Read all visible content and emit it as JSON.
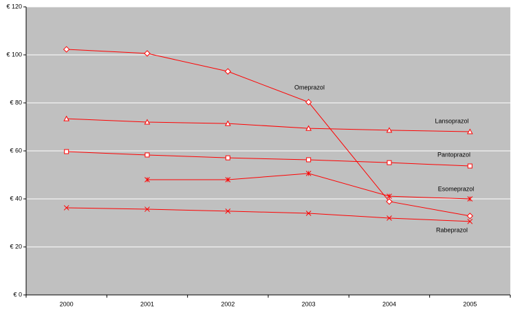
{
  "chart_data": {
    "type": "line",
    "categories": [
      "2000",
      "2001",
      "2002",
      "2003",
      "2004",
      "2005"
    ],
    "series": [
      {
        "name": "Omeprazol",
        "color": "#ff0000",
        "marker": "diamond",
        "values": [
          102.3,
          100.6,
          93.1,
          80.3,
          38.9,
          32.9
        ]
      },
      {
        "name": "Lansoprazol",
        "color": "#ff0000",
        "marker": "triangle",
        "values": [
          73.4,
          72,
          71.4,
          69.4,
          68.6,
          68
        ]
      },
      {
        "name": "Pantoprazol",
        "color": "#ff0000",
        "marker": "square",
        "values": [
          59.7,
          58.3,
          57.1,
          56.3,
          55.1,
          53.7
        ]
      },
      {
        "name": "Esomeprazol",
        "color": "#ff0000",
        "marker": "star",
        "values": [
          null,
          48,
          48,
          50.6,
          41.1,
          40
        ]
      },
      {
        "name": "Rabeprazol",
        "color": "#ff0000",
        "marker": "x",
        "values": [
          36.3,
          35.7,
          34.9,
          34,
          32,
          30.6
        ]
      }
    ],
    "ylim": [
      0,
      120
    ],
    "yticks": [
      {
        "value": 0,
        "label": "€ 0"
      },
      {
        "value": 20,
        "label": "€ 20"
      },
      {
        "value": 40,
        "label": "€ 40"
      },
      {
        "value": 60,
        "label": "€ 60"
      },
      {
        "value": 80,
        "label": "€ 80"
      },
      {
        "value": 100,
        "label": "€ 100"
      },
      {
        "value": 120,
        "label": "€ 120"
      }
    ],
    "grid": true,
    "background": "#c0c0c0",
    "grid_color": "#ffffff"
  }
}
